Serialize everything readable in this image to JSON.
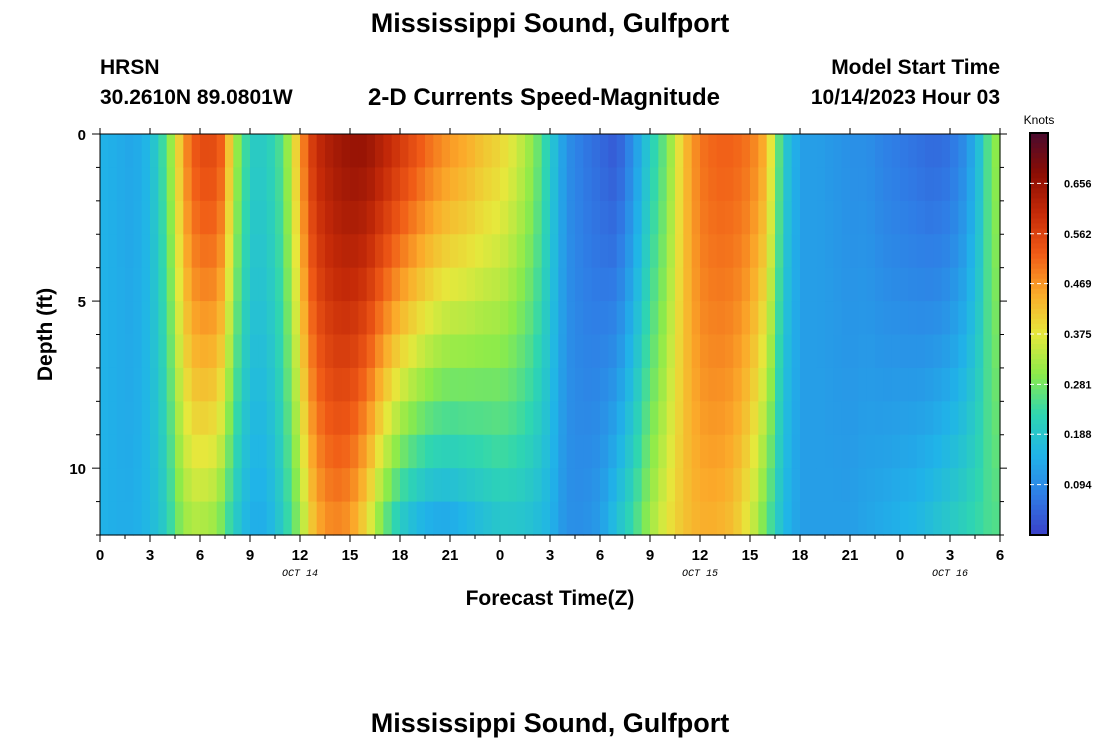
{
  "header": {
    "title": "Mississippi Sound, Gulfport",
    "station_id": "HRSN",
    "station_coords": "30.2610N  89.0801W",
    "subtitle": "2-D Currents Speed-Magnitude",
    "model_label": "Model Start Time",
    "model_time": "10/14/2023 Hour 03",
    "repeated_title": "Mississippi Sound, Gulfport"
  },
  "chart_data": {
    "type": "heatmap",
    "title": "2-D Currents Speed-Magnitude",
    "xlabel": "Forecast Time(Z)",
    "ylabel": "Depth (ft)",
    "x_tick_labels": [
      "0",
      "3",
      "6",
      "9",
      "12",
      "15",
      "18",
      "21",
      "0",
      "3",
      "6",
      "9",
      "12",
      "15",
      "18",
      "21",
      "0",
      "3",
      "6"
    ],
    "x_hours": [
      0,
      3,
      6,
      9,
      12,
      15,
      18,
      21,
      24,
      27,
      30,
      33,
      36,
      39,
      42,
      45,
      48,
      51,
      54
    ],
    "xlim": [
      0,
      54
    ],
    "date_labels": [
      {
        "hour": 12,
        "label": "OCT 14"
      },
      {
        "hour": 36,
        "label": "OCT 15"
      },
      {
        "hour": 51,
        "label": "OCT 16"
      }
    ],
    "y_tick_labels": [
      "0",
      "5",
      "10"
    ],
    "y_ticks": [
      0,
      5,
      10
    ],
    "ylim": [
      0,
      12
    ],
    "depth_levels": [
      0.5,
      1.5,
      2.5,
      3.5,
      4.5,
      5.5,
      6.5,
      7.5,
      8.5,
      9.5,
      10.5,
      11.5
    ],
    "colorbar": {
      "label": "Knots",
      "min": 0,
      "max": 0.75,
      "ticks": [
        "0.656",
        "0.562",
        "0.469",
        "0.375",
        "0.281",
        "0.188",
        "0.094"
      ],
      "tick_values": [
        0.656,
        0.562,
        0.469,
        0.375,
        0.281,
        0.188,
        0.094
      ],
      "colors": [
        "#3a3fc8",
        "#2f7ee6",
        "#20b4e8",
        "#2fd6b0",
        "#8ceb4a",
        "#e6e83c",
        "#fbaa2a",
        "#f05a16",
        "#c52a08",
        "#8a0d04",
        "#4a0a2e"
      ]
    },
    "speed_profile": {
      "hours": [
        0,
        1,
        2,
        3,
        4,
        4.5,
        5,
        5.5,
        6,
        7,
        7.5,
        8,
        9,
        10,
        11,
        12,
        12.5,
        13,
        14,
        15,
        16,
        17,
        18,
        19,
        20,
        21,
        22,
        23,
        24,
        25,
        26,
        27,
        28,
        29,
        30,
        31,
        32,
        33,
        34,
        35,
        36,
        37,
        38,
        39,
        40,
        41,
        42,
        43,
        44,
        45,
        46,
        47,
        48,
        49,
        50,
        51,
        52,
        53,
        53.5,
        54
      ],
      "surface": [
        0.15,
        0.14,
        0.13,
        0.16,
        0.26,
        0.36,
        0.46,
        0.52,
        0.55,
        0.55,
        0.5,
        0.34,
        0.2,
        0.2,
        0.26,
        0.45,
        0.55,
        0.6,
        0.64,
        0.66,
        0.66,
        0.62,
        0.58,
        0.54,
        0.5,
        0.47,
        0.45,
        0.42,
        0.4,
        0.36,
        0.3,
        0.2,
        0.1,
        0.07,
        0.05,
        0.03,
        0.1,
        0.2,
        0.28,
        0.42,
        0.5,
        0.52,
        0.52,
        0.5,
        0.44,
        0.2,
        0.12,
        0.12,
        0.11,
        0.1,
        0.1,
        0.08,
        0.07,
        0.06,
        0.05,
        0.06,
        0.1,
        0.2,
        0.3,
        0.3
      ],
      "bottom": [
        0.15,
        0.14,
        0.14,
        0.16,
        0.2,
        0.26,
        0.3,
        0.32,
        0.32,
        0.3,
        0.25,
        0.2,
        0.14,
        0.14,
        0.2,
        0.3,
        0.38,
        0.44,
        0.48,
        0.46,
        0.38,
        0.26,
        0.18,
        0.14,
        0.12,
        0.12,
        0.14,
        0.16,
        0.18,
        0.18,
        0.17,
        0.15,
        0.1,
        0.1,
        0.12,
        0.18,
        0.24,
        0.32,
        0.38,
        0.42,
        0.44,
        0.44,
        0.42,
        0.36,
        0.26,
        0.16,
        0.12,
        0.12,
        0.12,
        0.12,
        0.13,
        0.14,
        0.15,
        0.16,
        0.18,
        0.2,
        0.22,
        0.24,
        0.25,
        0.25
      ]
    }
  }
}
